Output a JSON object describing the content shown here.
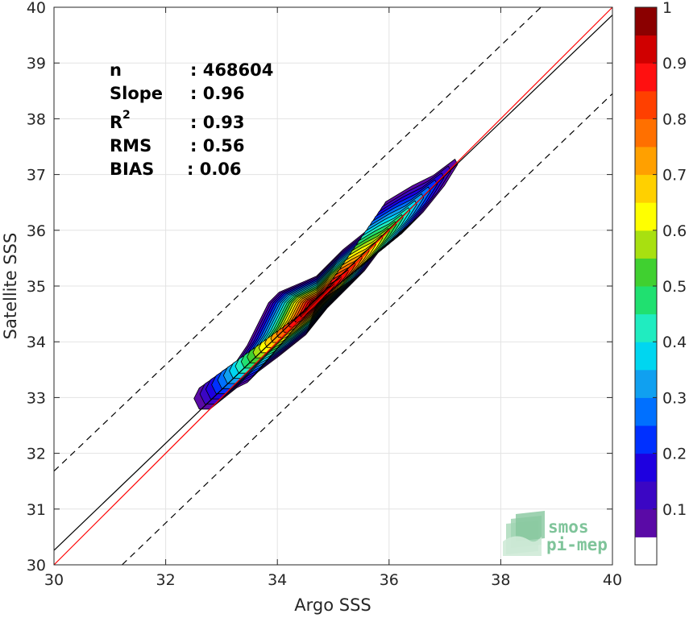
{
  "chart_data": {
    "type": "scatter",
    "subtype": "density-contour",
    "xlabel": "Argo SSS",
    "ylabel": "Satellite SSS",
    "xlim": [
      30,
      40
    ],
    "ylim": [
      30,
      40
    ],
    "x_ticks": [
      "30",
      "32",
      "34",
      "36",
      "38",
      "40"
    ],
    "y_ticks": [
      "30",
      "31",
      "32",
      "33",
      "34",
      "35",
      "36",
      "37",
      "38",
      "39",
      "40"
    ],
    "grid": true,
    "stats": {
      "n_label": "n",
      "n_value": ": 468604",
      "slope_label": "Slope",
      "slope_value": ": 0.96",
      "r2_label": "R",
      "r2_sup": "2",
      "r2_value": ": 0.93",
      "rms_label": "RMS",
      "rms_value": ": 0.56",
      "bias_label": "BIAS",
      "bias_value": ": 0.06"
    },
    "lines": {
      "identity": {
        "color": "#ff0000",
        "points": [
          [
            30,
            30
          ],
          [
            40,
            40
          ]
        ]
      },
      "regression": {
        "color": "#000000",
        "points": [
          [
            30,
            30.26
          ],
          [
            40,
            39.86
          ]
        ]
      },
      "upper_bound": {
        "color": "#000000",
        "style": "dashed",
        "points": [
          [
            30,
            31.68
          ],
          [
            38.72,
            40
          ]
        ]
      },
      "lower_bound": {
        "color": "#000000",
        "style": "dashed",
        "points": [
          [
            31.22,
            30
          ],
          [
            40,
            38.45
          ]
        ]
      }
    },
    "density_contours": {
      "levels": [
        0.05,
        0.1,
        0.15,
        0.2,
        0.25,
        0.3,
        0.35,
        0.4,
        0.45,
        0.5,
        0.55,
        0.6,
        0.65,
        0.7,
        0.75,
        0.8,
        0.85,
        0.9,
        0.95
      ],
      "peak": [
        34.7,
        34.7
      ],
      "outline": [
        [
          32.5,
          32.7
        ],
        [
          32.7,
          32.7
        ],
        [
          33.2,
          33.1
        ],
        [
          33.4,
          33.2
        ],
        [
          33.6,
          33.4
        ],
        [
          34.0,
          33.7
        ],
        [
          34.5,
          34.1
        ],
        [
          34.9,
          34.6
        ],
        [
          35.3,
          35.0
        ],
        [
          35.6,
          35.3
        ],
        [
          35.9,
          35.7
        ],
        [
          36.3,
          36.0
        ],
        [
          36.7,
          36.4
        ],
        [
          37.1,
          36.9
        ],
        [
          37.35,
          37.3
        ],
        [
          37.3,
          37.4
        ],
        [
          36.9,
          37.1
        ],
        [
          36.5,
          36.9
        ],
        [
          36.0,
          36.6
        ],
        [
          35.7,
          36.1
        ],
        [
          35.2,
          35.7
        ],
        [
          34.7,
          35.2
        ],
        [
          34.0,
          34.9
        ],
        [
          33.8,
          34.7
        ],
        [
          33.6,
          34.3
        ],
        [
          33.4,
          33.9
        ],
        [
          33.2,
          33.6
        ],
        [
          32.8,
          33.3
        ],
        [
          32.5,
          33.1
        ],
        [
          32.4,
          32.9
        ]
      ]
    },
    "colorbar": {
      "colors": [
        "#ffffff",
        "#5a0aa6",
        "#3b06c4",
        "#1e00e0",
        "#0030ff",
        "#0070ff",
        "#10a0f0",
        "#00d6f0",
        "#20ecc0",
        "#20e070",
        "#40d030",
        "#a8e010",
        "#ffff00",
        "#ffd000",
        "#ffa000",
        "#ff7000",
        "#ff4000",
        "#ff1010",
        "#d00000",
        "#8b0000"
      ],
      "ticks": [
        "0.1",
        "0.2",
        "0.3",
        "0.4",
        "0.5",
        "0.6",
        "0.7",
        "0.8",
        "0.9",
        "1"
      ],
      "range": [
        0,
        1
      ]
    }
  },
  "logo": {
    "line1": "smos",
    "line2": "pi-mep"
  }
}
